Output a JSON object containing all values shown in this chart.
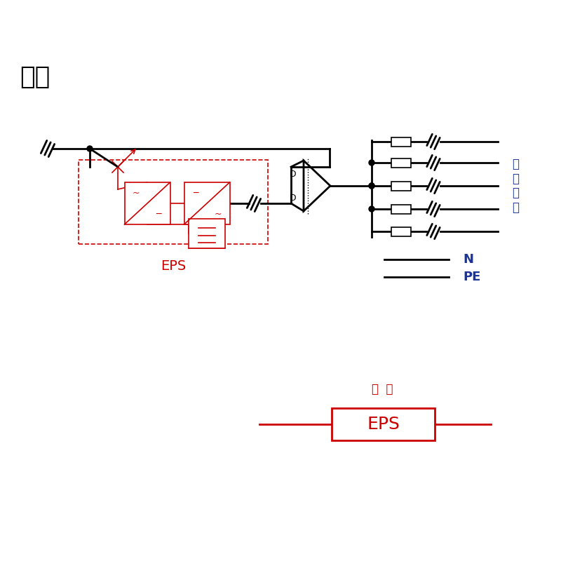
{
  "bg_color": "#ffffff",
  "black": "#000000",
  "red": "#cc0000",
  "blue": "#1a3399",
  "market_label": "市电",
  "eps_label": "EPS",
  "load_label": "应\n急\n负\n载",
  "n_label": "N",
  "pe_label": "PE",
  "jiandtu_label": "简  图",
  "eps_simple_label": "EPS"
}
